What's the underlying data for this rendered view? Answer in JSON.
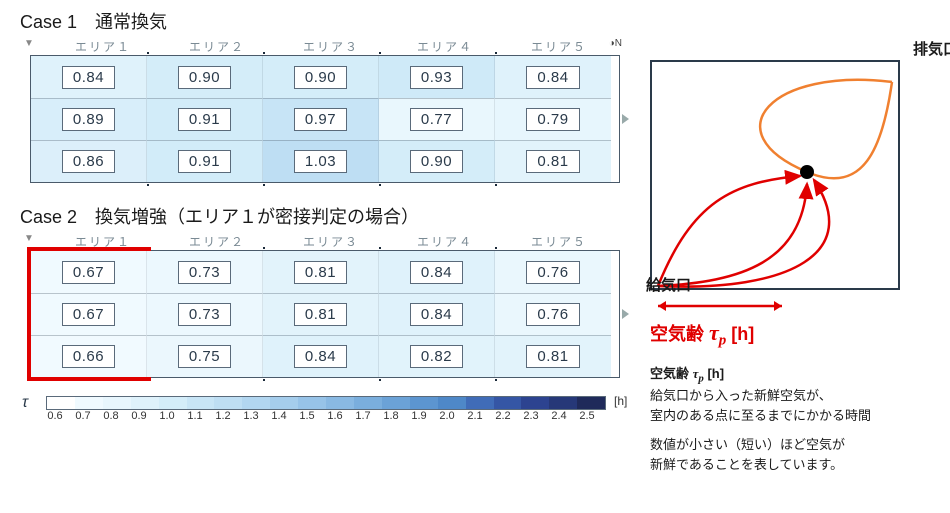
{
  "case1": {
    "title_prefix": "Case 1",
    "title_body": "　通常換気",
    "area_labels": [
      "エリア１",
      "エリア２",
      "エリア３",
      "エリア４",
      "エリア５"
    ],
    "rows": [
      [
        "0.84",
        "0.90",
        "0.90",
        "0.93",
        "0.84"
      ],
      [
        "0.89",
        "0.91",
        "0.97",
        "0.77",
        "0.79"
      ],
      [
        "0.86",
        "0.91",
        "1.03",
        "0.90",
        "0.81"
      ]
    ],
    "cell_colors": [
      [
        "#dff2fb",
        "#d4edf9",
        "#d4edf9",
        "#cfeaf8",
        "#dff2fb"
      ],
      [
        "#d8eefa",
        "#d2ecf9",
        "#c7e4f6",
        "#e9f7fd",
        "#e7f6fd"
      ],
      [
        "#dceffa",
        "#d2ecf9",
        "#bedef3",
        "#d4edf9",
        "#e2f3fb"
      ]
    ]
  },
  "case2": {
    "title_prefix": "Case 2",
    "title_body": "　換気増強（エリア１が密接判定の場合）",
    "area_labels": [
      "エリア１",
      "エリア２",
      "エリア３",
      "エリア４",
      "エリア５"
    ],
    "rows": [
      [
        "0.67",
        "0.73",
        "0.81",
        "0.84",
        "0.76"
      ],
      [
        "0.67",
        "0.73",
        "0.81",
        "0.84",
        "0.76"
      ],
      [
        "0.66",
        "0.75",
        "0.84",
        "0.82",
        "0.81"
      ]
    ],
    "cell_colors": [
      [
        "#f0faff",
        "#ecf8fe",
        "#e2f3fb",
        "#dff2fb",
        "#eaf7fd"
      ],
      [
        "#f0faff",
        "#ecf8fe",
        "#e2f3fb",
        "#dff2fb",
        "#eaf7fd"
      ],
      [
        "#f1faff",
        "#ebf7fd",
        "#dff2fb",
        "#e1f3fb",
        "#e2f3fb"
      ]
    ],
    "highlight_col": 0,
    "highlight_color": "#e00000"
  },
  "scale": {
    "symbol": "τ",
    "ticks": [
      "0.6",
      "0.7",
      "0.8",
      "0.9",
      "1.0",
      "1.1",
      "1.2",
      "1.3",
      "1.4",
      "1.5",
      "1.6",
      "1.7",
      "1.8",
      "1.9",
      "2.0",
      "2.1",
      "2.2",
      "2.3",
      "2.4",
      "2.5"
    ],
    "colors": [
      "#ffffff",
      "#f0faff",
      "#e8f6fd",
      "#dff2fb",
      "#d4edf9",
      "#c8e5f6",
      "#bedef3",
      "#b2d6f0",
      "#a5cdec",
      "#97c3e8",
      "#89b9e3",
      "#7aaedd",
      "#6ba2d7",
      "#5c95d0",
      "#4e88c8",
      "#406cb8",
      "#3556a5",
      "#2c4390",
      "#263878",
      "#1f2a5a"
    ],
    "unit": "[h]"
  },
  "diagram": {
    "exhaust_label": "排気口",
    "supply_label": "給気口",
    "air_age_label_prefix": "空気齢 ",
    "air_age_symbol": "τ",
    "air_age_sub": "p",
    "air_age_unit": " [h]",
    "exhaust_color": "#f08030",
    "supply_color": "#e00000",
    "dot_color": "#000000",
    "bracket_color": "#e00000"
  },
  "legend": {
    "heading_pre": "空気齢 ",
    "heading_sym": "τ",
    "heading_sub": "p",
    "heading_unit": " [h]",
    "line1": "給気口から入った新鮮空気が、",
    "line2": "室内のある点に至るまでにかかる時間",
    "line3": "数値が小さい（短い）ほど空気が",
    "line4": "新鮮であることを表しています。"
  },
  "north_symbol": "N"
}
